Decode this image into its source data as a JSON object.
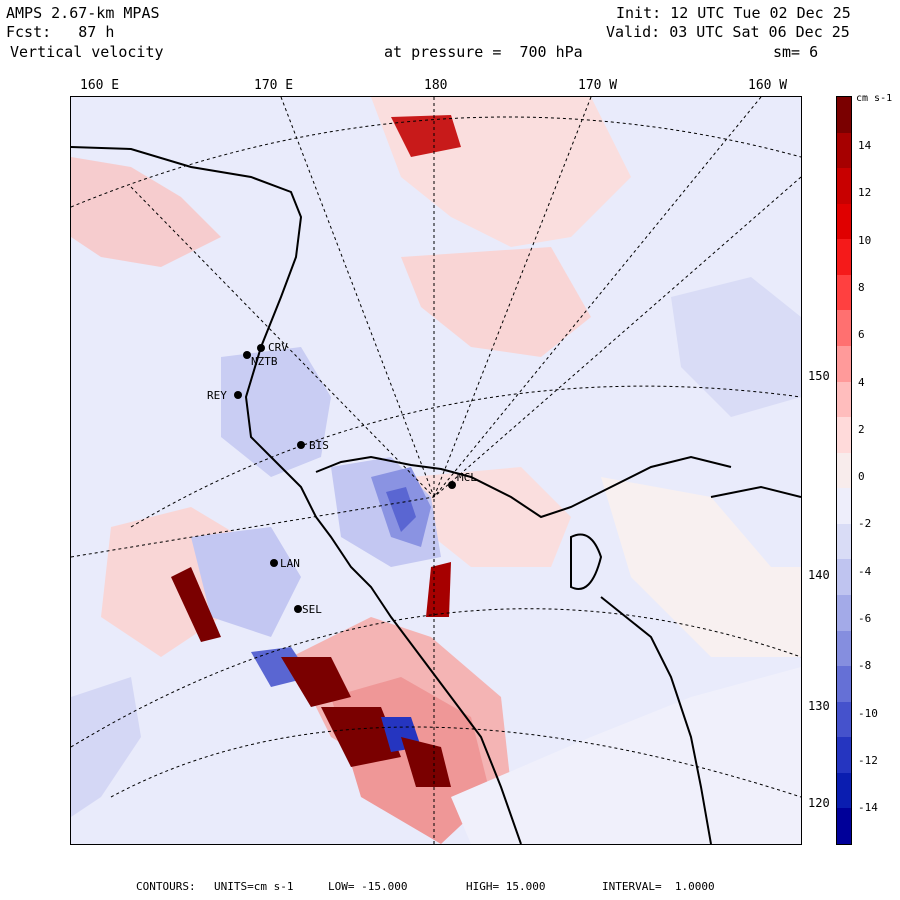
{
  "header": {
    "model": "AMPS 2.67-km MPAS",
    "forecast": "Fcst:   87 h",
    "field": "Vertical velocity",
    "init": "Init: 12 UTC Tue 02 Dec 25",
    "valid": "Valid: 03 UTC Sat 06 Dec 25",
    "pressure": "at pressure =  700 hPa",
    "smooth": "sm= 6"
  },
  "longitude_labels": [
    "160 E",
    "170 E",
    "180",
    "170 W",
    "160 W"
  ],
  "latitude_labels": [
    "150 W",
    "140 W",
    "130 W",
    "120 W"
  ],
  "stations": [
    "CRV",
    "NZTB",
    "REY",
    "BIS",
    "MCL",
    "LAN",
    "SEL"
  ],
  "colorbar": {
    "units": "cm s-1",
    "ticks": [
      "14",
      "12",
      "10",
      "8",
      "6",
      "4",
      "2",
      "0",
      "-2",
      "-4",
      "-6",
      "-8",
      "-10",
      "-12",
      "-14"
    ],
    "colors": [
      "#7a0000",
      "#a60000",
      "#c80000",
      "#e00000",
      "#f51a1a",
      "#ff4040",
      "#ff7070",
      "#ff9a9a",
      "#ffbdbd",
      "#ffdada",
      "#f8ecec",
      "#eeeefb",
      "#d9dcf6",
      "#bfc4f0",
      "#a3aae8",
      "#858edf",
      "#6570d6",
      "#4552cc",
      "#2535c0",
      "#0a1db0",
      "#000099"
    ]
  },
  "footer": {
    "label": "CONTOURS:",
    "units": "UNITS=cm s-1",
    "low": "LOW= -15.000",
    "high": "HIGH= 15.000",
    "interval": "INTERVAL=  1.0000"
  }
}
